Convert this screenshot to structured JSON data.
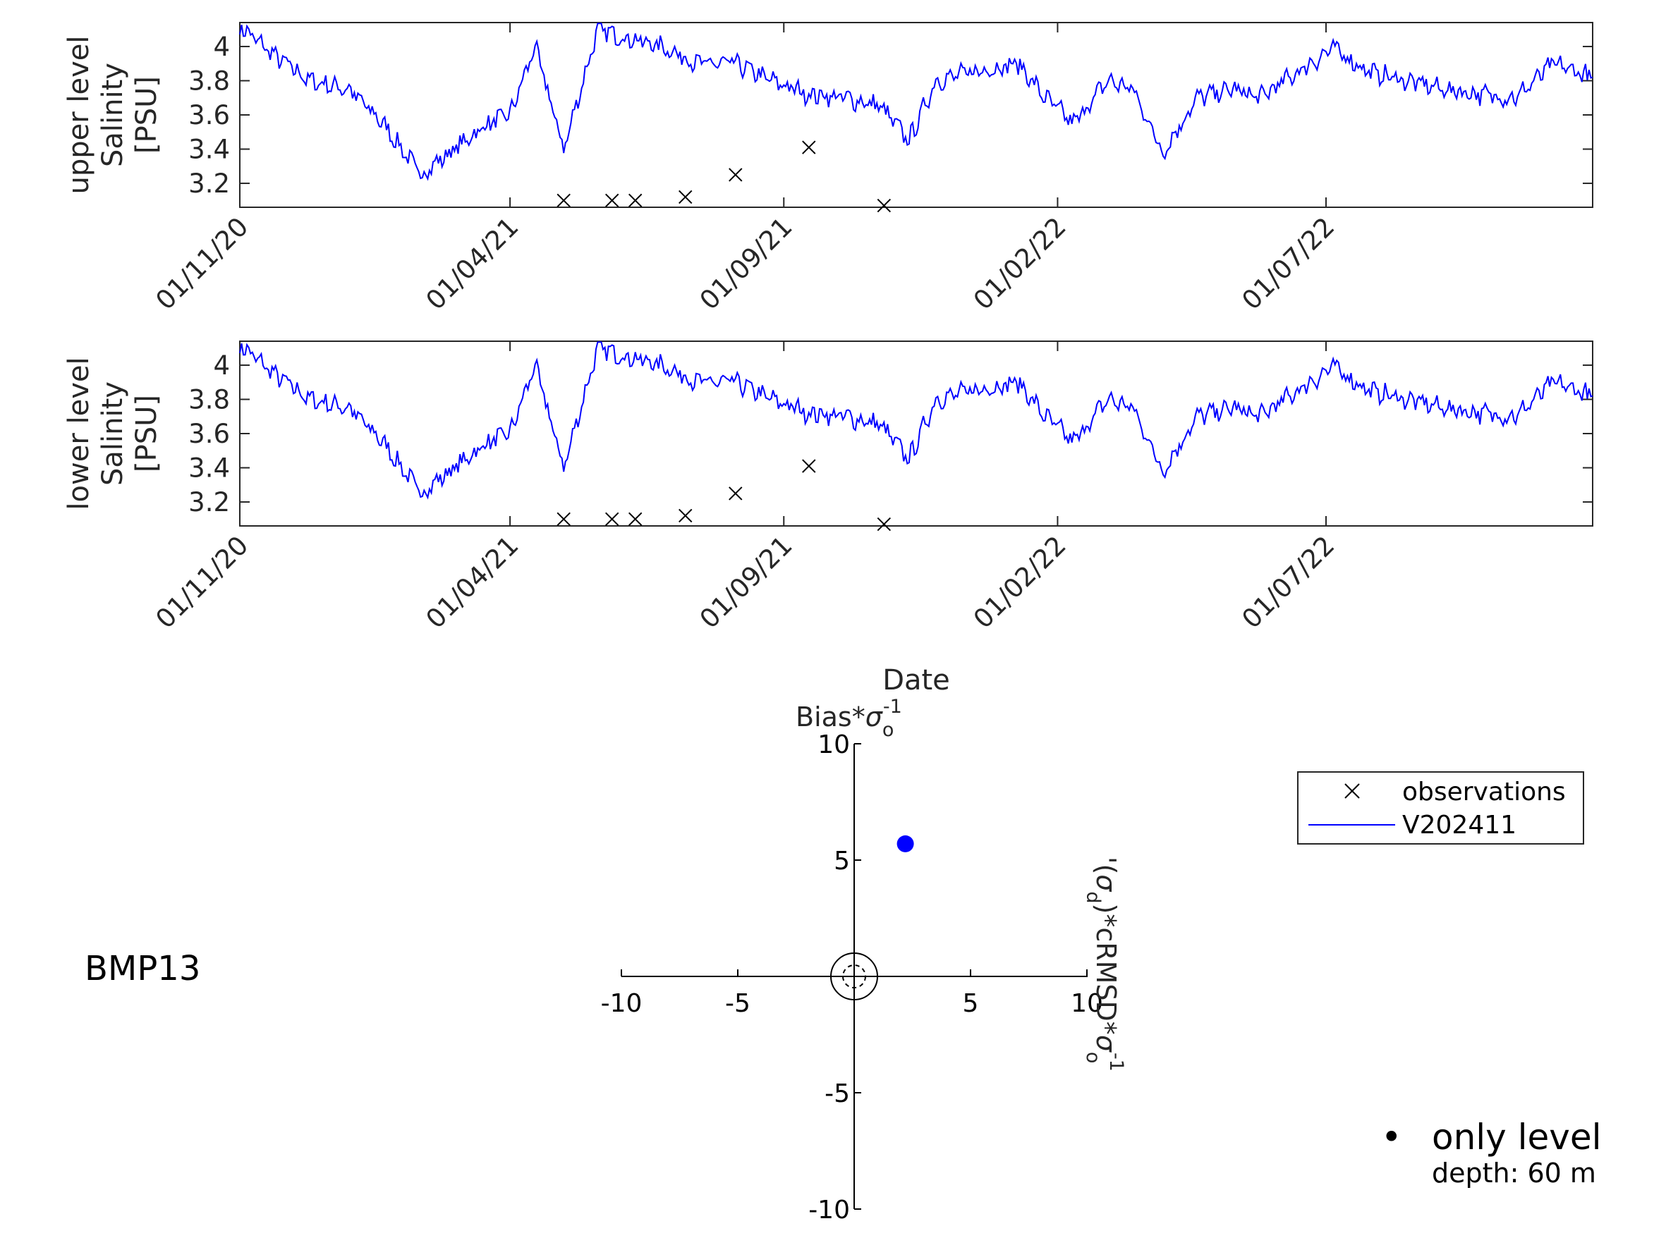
{
  "chart_data": [
    {
      "type": "line",
      "ylabel": [
        "upper level",
        "Salinity",
        "[PSU]"
      ],
      "xlabel": "",
      "ylim": [
        3.06,
        4.14
      ],
      "yticks": [
        "3.2",
        "3.4",
        "3.6",
        "3.8",
        "4"
      ],
      "xlim": [
        "2020-11-01",
        "2022-11-27"
      ],
      "xticks": [
        "01/11/20",
        "01/04/21",
        "01/09/21",
        "01/02/22",
        "01/07/22"
      ],
      "series": [
        {
          "name": "V202411",
          "color": "#0000ff",
          "x": [
            "2020-11-01",
            "2020-11-20",
            "2020-12-10",
            "2021-01-01",
            "2021-01-20",
            "2021-02-10",
            "2021-03-01",
            "2021-03-20",
            "2021-04-01",
            "2021-04-15",
            "2021-05-01",
            "2021-05-20",
            "2021-06-05",
            "2021-06-25",
            "2021-07-15",
            "2021-08-05",
            "2021-08-25",
            "2021-09-15",
            "2021-10-05",
            "2021-10-25",
            "2021-11-10",
            "2021-11-25",
            "2021-12-15",
            "2022-01-10",
            "2022-01-25",
            "2022-02-10",
            "2022-03-01",
            "2022-03-15",
            "2022-04-01",
            "2022-04-20",
            "2022-05-10",
            "2022-05-25",
            "2022-06-15",
            "2022-07-05",
            "2022-07-25",
            "2022-08-15",
            "2022-09-05",
            "2022-09-25",
            "2022-10-15",
            "2022-11-05",
            "2022-11-27"
          ],
          "y": [
            4.12,
            3.95,
            3.8,
            3.75,
            3.55,
            3.25,
            3.4,
            3.55,
            3.6,
            4.0,
            3.4,
            4.1,
            4.05,
            4.0,
            3.9,
            3.9,
            3.8,
            3.72,
            3.7,
            3.65,
            3.45,
            3.8,
            3.85,
            3.9,
            3.7,
            3.55,
            3.8,
            3.75,
            3.38,
            3.7,
            3.75,
            3.7,
            3.85,
            3.99,
            3.85,
            3.8,
            3.75,
            3.72,
            3.7,
            3.9,
            3.82
          ]
        },
        {
          "name": "observations",
          "marker": "x",
          "x": [
            "2021-05-01",
            "2021-05-28",
            "2021-06-10",
            "2021-07-08",
            "2021-08-05",
            "2021-09-15",
            "2021-10-27"
          ],
          "y": [
            3.1,
            3.1,
            3.1,
            3.12,
            3.25,
            3.41,
            3.07
          ]
        }
      ]
    },
    {
      "type": "line",
      "ylabel": [
        "lower level",
        "Salinity",
        "[PSU]"
      ],
      "xlabel": "Date",
      "ylim": [
        3.06,
        4.14
      ],
      "yticks": [
        "3.2",
        "3.4",
        "3.6",
        "3.8",
        "4"
      ],
      "xlim": [
        "2020-11-01",
        "2022-11-27"
      ],
      "xticks": [
        "01/11/20",
        "01/04/21",
        "01/09/21",
        "01/02/22",
        "01/07/22"
      ],
      "series": [
        {
          "name": "V202411",
          "color": "#0000ff",
          "x": [
            "2020-11-01",
            "2020-11-20",
            "2020-12-10",
            "2021-01-01",
            "2021-01-20",
            "2021-02-10",
            "2021-03-01",
            "2021-03-20",
            "2021-04-01",
            "2021-04-15",
            "2021-05-01",
            "2021-05-20",
            "2021-06-05",
            "2021-06-25",
            "2021-07-15",
            "2021-08-05",
            "2021-08-25",
            "2021-09-15",
            "2021-10-05",
            "2021-10-25",
            "2021-11-10",
            "2021-11-25",
            "2021-12-15",
            "2022-01-10",
            "2022-01-25",
            "2022-02-10",
            "2022-03-01",
            "2022-03-15",
            "2022-04-01",
            "2022-04-20",
            "2022-05-10",
            "2022-05-25",
            "2022-06-15",
            "2022-07-05",
            "2022-07-25",
            "2022-08-15",
            "2022-09-05",
            "2022-09-25",
            "2022-10-15",
            "2022-11-05",
            "2022-11-27"
          ],
          "y": [
            4.12,
            3.95,
            3.8,
            3.75,
            3.55,
            3.25,
            3.4,
            3.55,
            3.6,
            4.0,
            3.4,
            4.1,
            4.05,
            4.0,
            3.9,
            3.9,
            3.8,
            3.72,
            3.7,
            3.65,
            3.45,
            3.8,
            3.85,
            3.9,
            3.7,
            3.55,
            3.8,
            3.75,
            3.38,
            3.7,
            3.75,
            3.7,
            3.85,
            3.99,
            3.85,
            3.8,
            3.75,
            3.72,
            3.7,
            3.9,
            3.82
          ]
        },
        {
          "name": "observations",
          "marker": "x",
          "x": [
            "2021-05-01",
            "2021-05-28",
            "2021-06-10",
            "2021-07-08",
            "2021-08-05",
            "2021-09-15",
            "2021-10-27"
          ],
          "y": [
            3.1,
            3.1,
            3.1,
            3.12,
            3.25,
            3.41,
            3.07
          ]
        }
      ]
    },
    {
      "type": "scatter",
      "title": "BMP13",
      "ylabel_prefix": "Bias*",
      "xlabel_prefix": "(",
      "xlabel_mid": ")*cRMSD*",
      "sigma": "σ",
      "sub_o": "o",
      "sub_d": "d",
      "sup_neg1": "-1",
      "prime": "'",
      "xlim": [
        -10,
        10
      ],
      "ylim": [
        -10,
        10
      ],
      "xticks": [
        "-10",
        "-5",
        "5",
        "10"
      ],
      "yticks": [
        "-10",
        "-5",
        "5",
        "10"
      ],
      "points": [
        {
          "x": 2.2,
          "y": 5.7,
          "color": "#0000ff"
        }
      ],
      "legend_bullet": "•",
      "level_label": "only level",
      "depth_label": "depth: 60 m"
    }
  ],
  "legend": {
    "placement": "right",
    "entries": [
      {
        "label": "observations",
        "marker": "x"
      },
      {
        "label": "V202411",
        "marker": "line",
        "color": "#0000ff"
      }
    ]
  }
}
